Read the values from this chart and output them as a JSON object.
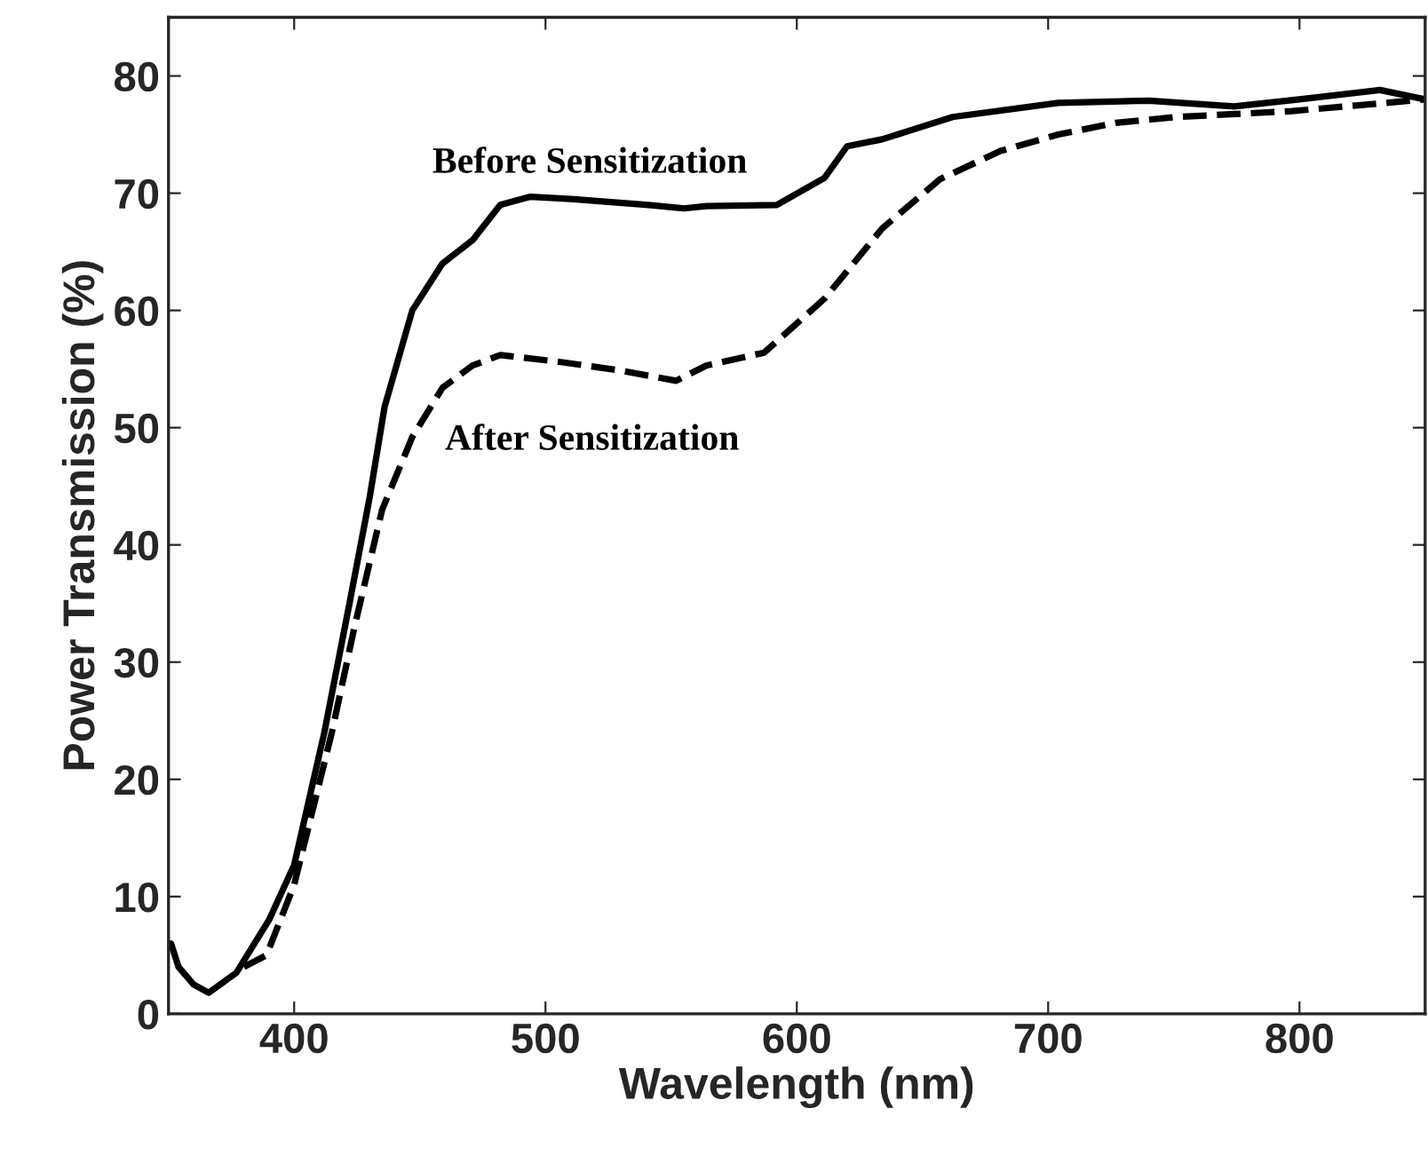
{
  "chart_data": {
    "type": "line",
    "xlabel": "Wavelength (nm)",
    "ylabel": "Power Transmission (%)",
    "xlim": [
      350,
      850
    ],
    "ylim": [
      0,
      85
    ],
    "xticks": [
      400,
      500,
      600,
      700,
      800
    ],
    "yticks": [
      0,
      10,
      20,
      30,
      40,
      50,
      60,
      70,
      80
    ],
    "grid": false,
    "series": [
      {
        "name": "Before Sensitization",
        "color": "#000000",
        "line_style": "solid",
        "x": [
          351,
          354,
          360,
          366,
          377,
          390,
          400,
          412,
          422,
          430,
          436,
          447,
          459,
          471,
          482,
          494,
          510,
          541,
          555,
          564,
          592,
          611,
          620,
          634,
          662,
          704,
          740,
          774,
          800,
          832,
          850
        ],
        "values": [
          6,
          4,
          2.5,
          1.8,
          3.5,
          8,
          12.7,
          24,
          35,
          44,
          51.8,
          60,
          64,
          66,
          69,
          69.7,
          69.5,
          69,
          68.7,
          68.9,
          69,
          71.3,
          74,
          74.6,
          76.5,
          77.7,
          77.9,
          77.4,
          78,
          78.8,
          78
        ]
      },
      {
        "name": "After Sensitization",
        "color": "#000000",
        "line_style": "dashed",
        "x": [
          380,
          389,
          400,
          415,
          424,
          435,
          447,
          459,
          471,
          482,
          506,
          529,
          552,
          564,
          587,
          611,
          634,
          657,
          681,
          704,
          727,
          751,
          797,
          850
        ],
        "values": [
          4,
          5,
          11,
          24,
          33,
          43,
          49.2,
          53.4,
          55.3,
          56.2,
          55.6,
          54.9,
          54,
          55.3,
          56.4,
          61,
          67,
          71.2,
          73.6,
          75,
          76,
          76.5,
          77,
          78
        ]
      }
    ]
  }
}
